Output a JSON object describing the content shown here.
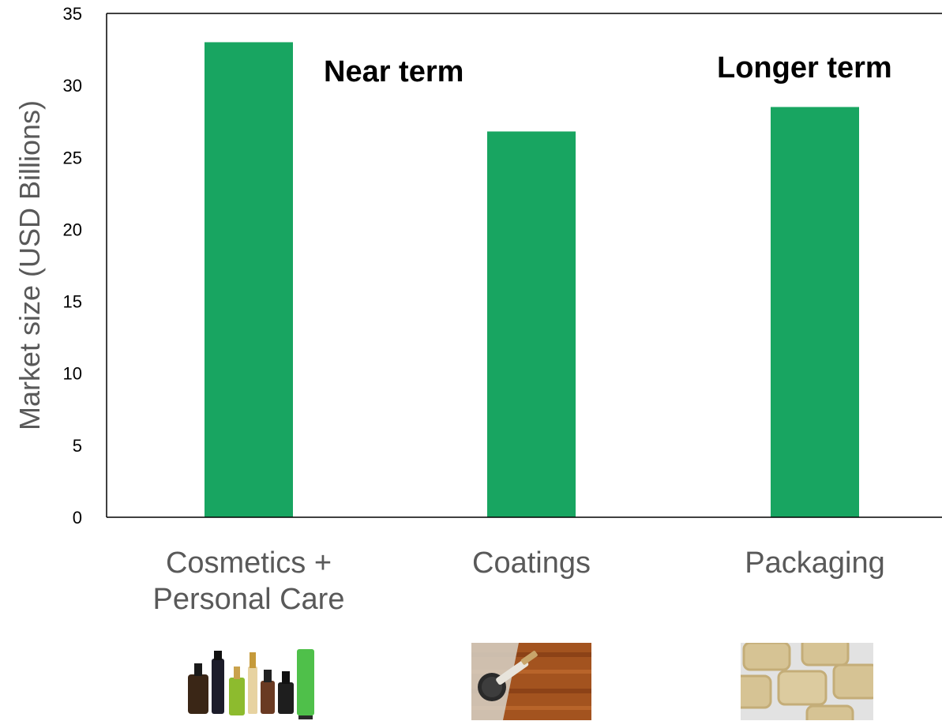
{
  "chart_data": {
    "type": "bar",
    "categories": [
      "Cosmetics +\nPersonal Care",
      "Coatings",
      "Packaging"
    ],
    "values": [
      33,
      26.8,
      28.5
    ],
    "title": "",
    "xlabel": "",
    "ylabel": "Market size (USD Billions)",
    "ylim": [
      0,
      35
    ],
    "yticks": [
      0,
      5,
      10,
      15,
      20,
      25,
      30,
      35
    ],
    "grid": false,
    "bar_color": "#18A561",
    "annotations": [
      "Near term",
      "Longer term"
    ]
  },
  "icons": [
    "cosmetics-products-image",
    "paint-brush-wood-image",
    "molded-pulp-trays-image"
  ],
  "colors": {
    "axis": "#000000",
    "label_text": "#595959",
    "annotation_text": "#000000"
  }
}
